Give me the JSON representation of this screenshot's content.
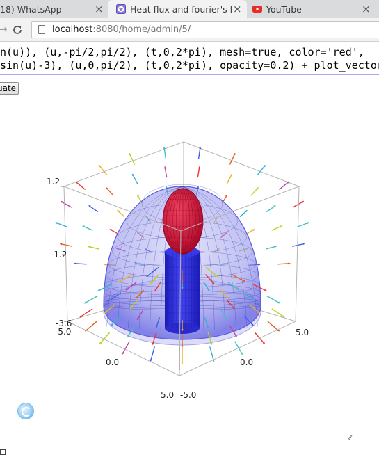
{
  "tabs": [
    {
      "title": "18) WhatsApp",
      "icon": "whatsapp-icon"
    },
    {
      "title": "Heat flux and fourier's l",
      "icon": "sage-icon",
      "active": true
    },
    {
      "title": "YouTube",
      "icon": "youtube-icon"
    }
  ],
  "tab_close_glyph": "×",
  "address": {
    "host": "localhost",
    "rest": ":8080/home/admin/5/"
  },
  "nav": {
    "forward_glyph": "→",
    "reload_glyph": "C"
  },
  "code": {
    "line1": "n(u)), (u,-pi/2,pi/2), (t,0,2*pi), mesh=true, color='red',",
    "line2": "sin(u)-3), (u,0,pi/2), (t,0,2*pi), opacity=0.2) + plot_vector"
  },
  "evaluate_label": "uate",
  "plot": {
    "ticks": {
      "z_top": "1.2",
      "z_mid": "-1.2",
      "z_bot": "-3.6",
      "x_left_start": "-5.0",
      "x_left_mid": "0.0",
      "x_left_end": "5.0",
      "y_right_start": "-5.0",
      "y_right_mid": "0.0",
      "y_right_end": "5.0"
    },
    "colors": {
      "hemisphere": "#5a5ae0",
      "ellipsoid": "#d4143a",
      "cylinder": "#2a2ad8",
      "frame": "#b4b4b4",
      "grid_mesh": "#3a3aa8"
    }
  },
  "resize_glyph": "⁄⁄"
}
